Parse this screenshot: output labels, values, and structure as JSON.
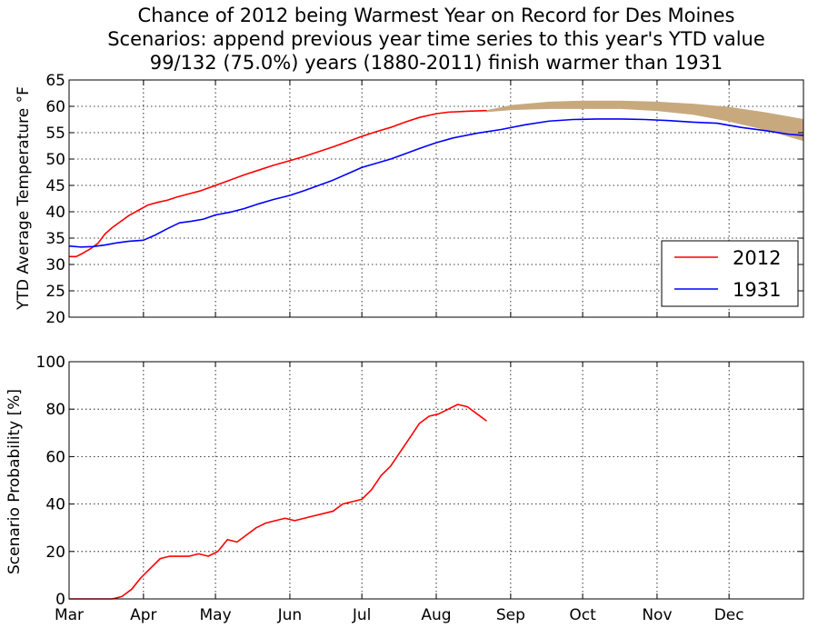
{
  "chart_data": {
    "title_lines": [
      "Chance of 2012 being Warmest Year on Record for Des Moines",
      "Scenarios: append previous year time series to this year's YTD value",
      "99/132 (75.0%) years (1880-2011) finish warmer than 1931"
    ],
    "x_month_labels": [
      "Mar",
      "Apr",
      "May",
      "Jun",
      "Jul",
      "Aug",
      "Sep",
      "Oct",
      "Nov",
      "Dec"
    ],
    "x_month_days": [
      0,
      31,
      61,
      92,
      122,
      153,
      184,
      214,
      245,
      275
    ],
    "x_range": [
      0,
      306
    ],
    "panels": [
      {
        "type": "line",
        "ylabel": "YTD Average Temperature °F",
        "ylim": [
          20,
          65
        ],
        "yticks": [
          20,
          25,
          30,
          35,
          40,
          45,
          50,
          55,
          60,
          65
        ],
        "grid": true,
        "legend_placement": "lower-right",
        "scenario_band": {
          "color": "#c8a97e",
          "x": [
            174,
            185,
            200,
            215,
            230,
            245,
            260,
            275,
            290,
            306
          ],
          "upper": [
            59.2,
            60.2,
            60.8,
            61.0,
            61.0,
            60.8,
            60.4,
            59.8,
            58.8,
            57.5
          ],
          "lower": [
            59.0,
            59.4,
            59.6,
            59.6,
            59.6,
            59.2,
            58.5,
            57.2,
            55.6,
            53.5
          ]
        },
        "series": [
          {
            "name": "2012",
            "color": "#ff0000",
            "x": [
              0,
              3,
              6,
              9,
              12,
              15,
              18,
              21,
              25,
              29,
              33,
              37,
              41,
              45,
              50,
              55,
              61,
              67,
              73,
              79,
              85,
              92,
              98,
              104,
              110,
              116,
              122,
              128,
              134,
              140,
              146,
              153,
              158,
              163,
              168,
              174
            ],
            "y": [
              31.5,
              31.5,
              32.2,
              33.0,
              34.0,
              35.8,
              37.0,
              38.0,
              39.3,
              40.3,
              41.3,
              41.8,
              42.2,
              42.8,
              43.4,
              44.0,
              45.0,
              46.0,
              47.0,
              47.9,
              48.8,
              49.7,
              50.5,
              51.4,
              52.3,
              53.3,
              54.3,
              55.2,
              56.0,
              57.0,
              57.9,
              58.6,
              58.9,
              59.0,
              59.1,
              59.2
            ]
          },
          {
            "name": "1931",
            "color": "#0000ff",
            "x": [
              0,
              5,
              10,
              15,
              20,
              25,
              31,
              36,
              41,
              46,
              51,
              56,
              61,
              67,
              73,
              79,
              85,
              92,
              98,
              104,
              110,
              116,
              122,
              128,
              134,
              140,
              146,
              153,
              160,
              170,
              180,
              190,
              200,
              210,
              220,
              230,
              240,
              250,
              260,
              270,
              280,
              290,
              300,
              306
            ],
            "y": [
              33.5,
              33.3,
              33.4,
              33.7,
              34.1,
              34.4,
              34.6,
              35.6,
              36.8,
              37.9,
              38.2,
              38.6,
              39.4,
              39.9,
              40.6,
              41.5,
              42.3,
              43.1,
              44.0,
              45.0,
              46.0,
              47.2,
              48.4,
              49.2,
              50.0,
              51.0,
              52.0,
              53.1,
              54.0,
              54.9,
              55.6,
              56.5,
              57.2,
              57.5,
              57.6,
              57.6,
              57.5,
              57.3,
              57.0,
              56.8,
              56.0,
              55.4,
              54.7,
              54.5
            ]
          }
        ]
      },
      {
        "type": "line",
        "ylabel": "Scenario Probability [%]",
        "ylim": [
          0,
          100
        ],
        "yticks": [
          0,
          20,
          40,
          60,
          80,
          100
        ],
        "grid": true,
        "series": [
          {
            "name": "",
            "color": "#ff0000",
            "x": [
              0,
              5,
              10,
              14,
              18,
              22,
              26,
              30,
              34,
              38,
              42,
              46,
              50,
              54,
              58,
              62,
              66,
              70,
              74,
              78,
              82,
              86,
              90,
              94,
              98,
              102,
              106,
              110,
              114,
              118,
              122,
              126,
              130,
              134,
              138,
              142,
              146,
              150,
              154,
              158,
              162,
              166,
              170,
              174
            ],
            "y": [
              0,
              0,
              0,
              0,
              0,
              1,
              4,
              9,
              13,
              17,
              18,
              18,
              18,
              19,
              18,
              20,
              25,
              24,
              27,
              30,
              32,
              33,
              34,
              33,
              34,
              35,
              36,
              37,
              40,
              41,
              42,
              46,
              52,
              56,
              62,
              68,
              74,
              77,
              78,
              80,
              82,
              81,
              78,
              75
            ]
          }
        ]
      }
    ]
  }
}
